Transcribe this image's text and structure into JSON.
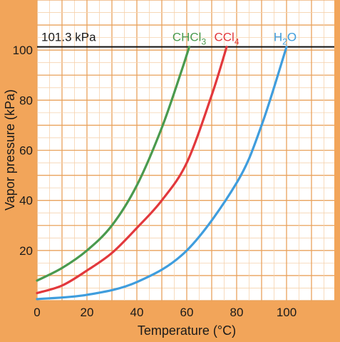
{
  "chart_data": {
    "type": "line",
    "xlabel": "Temperature (°C)",
    "ylabel": "Vapor pressure (kPa)",
    "xlim": [
      0,
      120
    ],
    "ylim": [
      0,
      120
    ],
    "x_ticks": [
      0,
      20,
      40,
      60,
      80,
      100
    ],
    "y_ticks": [
      20,
      40,
      60,
      80,
      100
    ],
    "grid": true,
    "reference_line": {
      "label": "101.3 kPa",
      "value": 101.3
    },
    "series": [
      {
        "name": "CHCl3",
        "label_main": "CHCl",
        "label_sub": "3",
        "color": "#4a9a4e",
        "points": [
          [
            0,
            8
          ],
          [
            10,
            13
          ],
          [
            20,
            20
          ],
          [
            30,
            30
          ],
          [
            40,
            46
          ],
          [
            50,
            69
          ],
          [
            58,
            92
          ],
          [
            61,
            101.3
          ]
        ]
      },
      {
        "name": "CCl4",
        "label_main": "CCl",
        "label_sub": "4",
        "color": "#e2383c",
        "points": [
          [
            0,
            3
          ],
          [
            10,
            6
          ],
          [
            20,
            12
          ],
          [
            30,
            19
          ],
          [
            40,
            29
          ],
          [
            50,
            40
          ],
          [
            60,
            55
          ],
          [
            70,
            82
          ],
          [
            76,
            101.3
          ]
        ]
      },
      {
        "name": "H2O",
        "label_main": "H",
        "label_sub": "2",
        "label_tail": "O",
        "color": "#3f9ddd",
        "points": [
          [
            0,
            0.6
          ],
          [
            20,
            2.3
          ],
          [
            40,
            7.4
          ],
          [
            60,
            20
          ],
          [
            80,
            47
          ],
          [
            90,
            70
          ],
          [
            100,
            101.3
          ]
        ]
      }
    ]
  }
}
